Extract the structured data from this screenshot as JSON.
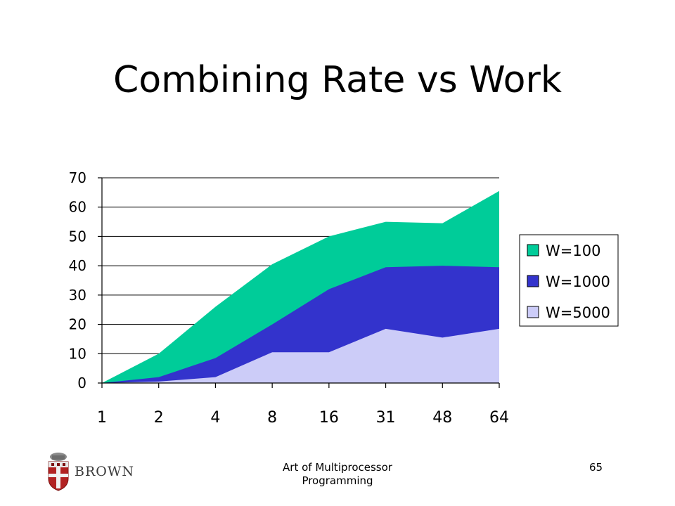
{
  "slide": {
    "title": "Combining Rate vs Work",
    "footer_text": "Art of Multiprocessor Programming",
    "page_number": "65",
    "logo_text": "BROWN"
  },
  "chart_data": {
    "type": "area",
    "stacked": true,
    "categories": [
      "1",
      "2",
      "4",
      "8",
      "16",
      "31",
      "48",
      "64"
    ],
    "ylim": [
      0,
      70
    ],
    "yticks": [
      0,
      10,
      20,
      30,
      40,
      50,
      60,
      70
    ],
    "grid": true,
    "legend_position": "right",
    "series": [
      {
        "name": "W=5000",
        "color": "#ccccf8",
        "values": [
          0,
          0.5,
          2,
          10.5,
          10.5,
          18.5,
          15.5,
          18.5
        ]
      },
      {
        "name": "W=1000",
        "color": "#3333cc",
        "values": [
          0,
          2,
          8.5,
          20,
          32,
          39.5,
          40,
          39.5
        ]
      },
      {
        "name": "W=100",
        "color": "#00cc99",
        "values": [
          0,
          10,
          26,
          40.5,
          50,
          55,
          54.5,
          65.5
        ]
      }
    ],
    "legend_order": [
      "W=100",
      "W=1000",
      "W=5000"
    ]
  }
}
